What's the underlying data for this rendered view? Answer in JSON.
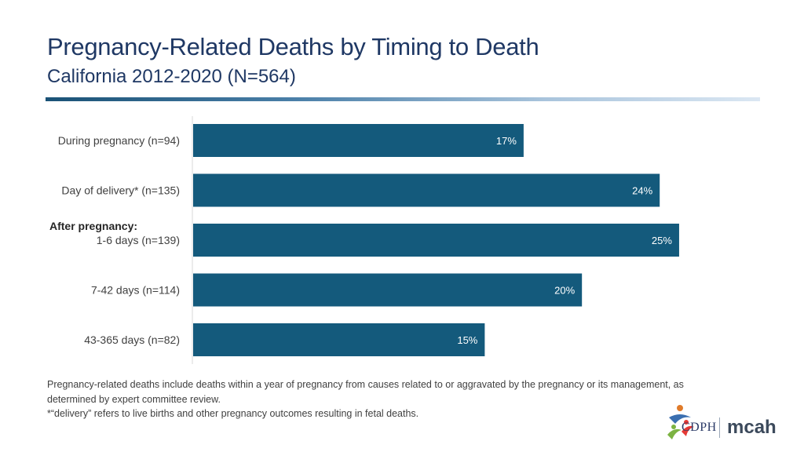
{
  "header": {
    "title": "Pregnancy-Related Deaths by Timing to Death",
    "subtitle": "California 2012-2020 (N=564)"
  },
  "chart_data": {
    "type": "bar",
    "orientation": "horizontal",
    "group_label": "After pregnancy:",
    "categories": [
      "During pregnancy (n=94)",
      "Day of delivery* (n=135)",
      "1-6 days (n=139)",
      "7-42 days (n=114)",
      "43-365 days (n=82)"
    ],
    "values": [
      17,
      24,
      25,
      20,
      15
    ],
    "data_labels": [
      "17%",
      "24%",
      "25%",
      "20%",
      "15%"
    ],
    "xlim": [
      0,
      29
    ],
    "bar_color": "#145a7c",
    "label_color": "#ffffff"
  },
  "footnote": {
    "line1": "Pregnancy-related deaths include deaths within a year of pregnancy from causes related to or aggravated by the pregnancy or its management, as",
    "line2": "determined by expert committee review.",
    "line3": "*“delivery” refers to live births and other pregnancy outcomes resulting in fetal deaths."
  },
  "logo": {
    "org1": "CDPH",
    "org2": "mcah"
  }
}
